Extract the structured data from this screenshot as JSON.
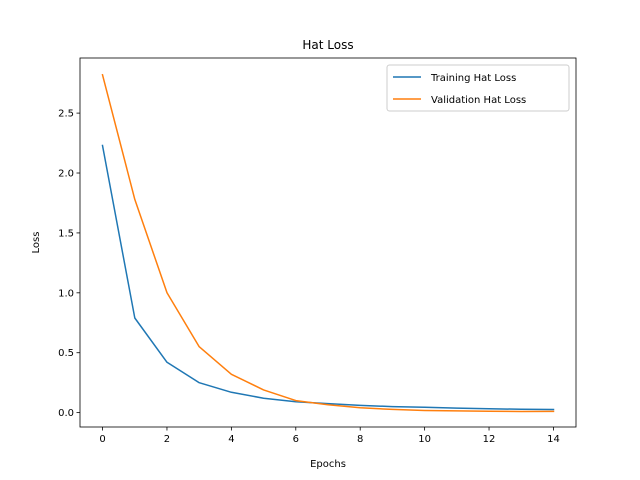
{
  "chart_data": {
    "type": "line",
    "title": "Hat Loss",
    "xlabel": "Epochs",
    "ylabel": "Loss",
    "xlim": [
      -0.7,
      14.7
    ],
    "ylim": [
      -0.12,
      2.96
    ],
    "xticks": [
      0,
      2,
      4,
      6,
      8,
      10,
      12,
      14
    ],
    "yticks": [
      0.0,
      0.5,
      1.0,
      1.5,
      2.0,
      2.5
    ],
    "xtick_labels": [
      "0",
      "2",
      "4",
      "6",
      "8",
      "10",
      "12",
      "14"
    ],
    "ytick_labels": [
      "0.0",
      "0.5",
      "1.0",
      "1.5",
      "2.0",
      "2.5"
    ],
    "grid": false,
    "legend_position": "top-right",
    "x": [
      0,
      1,
      2,
      3,
      4,
      5,
      6,
      7,
      8,
      9,
      10,
      11,
      12,
      13,
      14
    ],
    "series": [
      {
        "name": "Training Hat Loss",
        "color": "#1f77b4",
        "values": [
          2.23,
          0.79,
          0.42,
          0.25,
          0.17,
          0.12,
          0.09,
          0.075,
          0.06,
          0.05,
          0.045,
          0.038,
          0.033,
          0.028,
          0.026
        ]
      },
      {
        "name": "Validation Hat Loss",
        "color": "#ff7f0e",
        "values": [
          2.82,
          1.78,
          1.0,
          0.55,
          0.32,
          0.19,
          0.1,
          0.065,
          0.04,
          0.027,
          0.018,
          0.014,
          0.011,
          0.009,
          0.01
        ]
      }
    ]
  }
}
